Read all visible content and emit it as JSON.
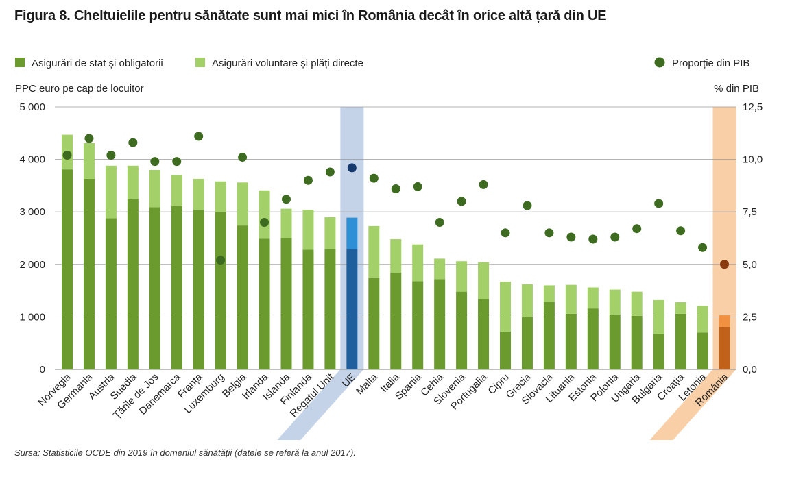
{
  "title": "Figura 8. Cheltuielile pentru sănătate sunt mai mici în România decât în orice altă țară din UE",
  "source": "Sursa: Statisticile OCDE din 2019 în domeniul sănătății (datele se referă la anul 2017).",
  "chart_data": {
    "type": "bar",
    "stacked": true,
    "left_axis_label": "PPC euro pe cap de locuitor",
    "right_axis_label": "% din PIB",
    "left_ticks": [
      "0",
      "1 000",
      "2 000",
      "3 000",
      "4 000",
      "5 000"
    ],
    "right_ticks": [
      "0,0",
      "2,5",
      "5,0",
      "7,5",
      "10,0",
      "12,5"
    ],
    "ylim": [
      0,
      5000
    ],
    "ylim_right": [
      0,
      12.5
    ],
    "grid": true,
    "legend_position": "top",
    "categories": [
      "Norvegia",
      "Germania",
      "Austria",
      "Suedia",
      "Țările de Jos",
      "Danemarca",
      "Franța",
      "Luxemburg",
      "Belgia",
      "Irlanda",
      "Islanda",
      "Finlanda",
      "Regatul Unit",
      "UE",
      "Malta",
      "Italia",
      "Spania",
      "Cehia",
      "Slovenia",
      "Portugalia",
      "Cipru",
      "Grecia",
      "Slovacia",
      "Lituania",
      "Estonia",
      "Polonia",
      "Ungaria",
      "Bulgaria",
      "Croația",
      "Letonia",
      "România"
    ],
    "highlighted": {
      "UE": "blue",
      "România": "orange"
    },
    "series": [
      {
        "name": "Asigurări de stat și obligatorii",
        "axis": "left",
        "kind": "bar",
        "values": [
          3810,
          3630,
          2880,
          3240,
          3090,
          3110,
          3030,
          3000,
          2740,
          2490,
          2500,
          2280,
          2290,
          2290,
          1740,
          1840,
          1680,
          1720,
          1480,
          1340,
          720,
          1000,
          1290,
          1060,
          1160,
          1040,
          1020,
          680,
          1060,
          700,
          810
        ]
      },
      {
        "name": "Asigurări voluntare și plăți directe",
        "axis": "left",
        "kind": "bar",
        "values": [
          660,
          680,
          1000,
          640,
          710,
          590,
          600,
          580,
          820,
          920,
          560,
          760,
          610,
          600,
          990,
          640,
          700,
          390,
          580,
          700,
          950,
          620,
          310,
          550,
          400,
          480,
          460,
          640,
          220,
          510,
          220
        ]
      },
      {
        "name": "Proporție din PIB",
        "axis": "right",
        "kind": "dot",
        "values": [
          10.2,
          11.0,
          10.2,
          10.8,
          9.9,
          9.9,
          11.1,
          5.2,
          10.1,
          7.0,
          8.1,
          9.0,
          9.4,
          9.6,
          9.1,
          8.6,
          8.7,
          7.0,
          8.0,
          8.8,
          6.5,
          7.8,
          6.5,
          6.3,
          6.2,
          6.3,
          6.7,
          7.9,
          6.6,
          5.8,
          5.0
        ]
      }
    ],
    "colors": {
      "mandatory": "#6b9a2e",
      "voluntary": "#a4d06a",
      "dot": "#3d6b1f",
      "eu_mandatory": "#1f5f9e",
      "eu_voluntary": "#2e8fd6",
      "eu_dot": "#173a6e",
      "eu_band": "#c4d3e8",
      "ro_mandatory": "#c2621a",
      "ro_voluntary": "#f09040",
      "ro_dot": "#8a3b10",
      "ro_band": "#f9cfa8",
      "grid": "#9a9a9a"
    }
  }
}
